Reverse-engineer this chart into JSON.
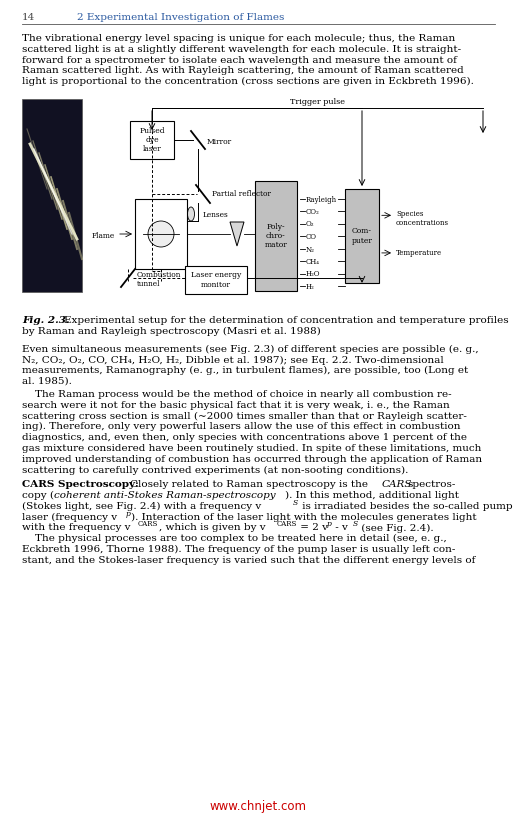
{
  "header_number": "14",
  "header_title": "2 Experimental Investigation of Flames",
  "bg_color": "#ffffff",
  "text_color": "#000000",
  "header_color": "#2c5aa0",
  "watermark_color": "#cc0000",
  "watermark_text": "www.chnjet.com",
  "para1_lines": [
    "The vibrational energy level spacing is unique for each molecule; thus, the Raman",
    "scattered light is at a slightly different wavelength for each molecule. It is straight-",
    "forward for a spectrometer to isolate each wavelength and measure the amount of",
    "Raman scattered light. As with Rayleigh scattering, the amount of Raman scattered",
    "light is proportional to the concentration (cross sections are given in Eckbreth 1996)."
  ],
  "para2_line1": "Even simultaneous measurements (see Fig. 2.3) of different species are possible (e. g.,",
  "para2_line3": "measurements, Ramanography (e. g., in turbulent flames), are possible, too (Long et",
  "para2_line4": "al. 1985).",
  "para3_lines": [
    "    The Raman process would be the method of choice in nearly all combustion re-",
    "search were it not for the basic physical fact that it is very weak, i. e., the Raman",
    "scattering cross section is small (~2000 times smaller than that or Rayleigh scatter-",
    "ing). Therefore, only very powerful lasers allow the use of this effect in combustion",
    "diagnostics, and, even then, only species with concentrations above 1 percent of the",
    "gas mixture considered have been routinely studied. In spite of these limitations, much",
    "improved understanding of combustion has occurred through the application of Raman",
    "scattering to carefully contrived experiments (at non-sooting conditions)."
  ],
  "para4_line1_rest": " Closely related to Raman spectroscopy is the ",
  "para4_line2": "copy (",
  "para4_line2_italic": "coherent anti-Stokes Raman-spectroscopy",
  "para4_line2_rest": "). In this method, additional light",
  "para4_line3": "(Stokes light, see Fig. 2.4) with a frequency v",
  "para4_line3_sub": "S",
  "para4_line3_rest": " is irradiated besides the so-called pump",
  "para4_line4": "laser (frequency v",
  "para4_line4_sub": "p",
  "para4_line4_rest": "). Interaction of the laser light with the molecules generates light",
  "para4_line5": "with the frequency v",
  "para4_line5_sub": "CARS",
  "para4_line5_mid": ", which is given by v",
  "para4_line5_sub2": "CARS",
  "para4_line5_eq": " = 2 v",
  "para4_line5_sub3": "p",
  "para4_line5_minus": " - v",
  "para4_line5_sub4": "S",
  "para4_line5_end": " (see Fig. 2.4).",
  "para4_line6": "    The physical processes are too complex to be treated here in detail (see, e. g.,",
  "para4_line7": "Eckbreth 1996, Thorne 1988). The frequency of the pump laser is usually left con-",
  "para4_line8": "stant, and the Stokes-laser frequency is varied such that the different energy levels of"
}
